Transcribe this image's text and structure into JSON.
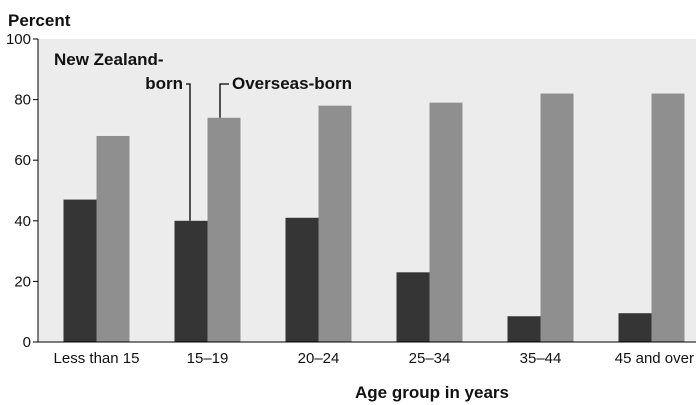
{
  "chart_data": {
    "type": "bar",
    "ylabel": "Percent",
    "xlabel": "Age group in years",
    "ylim": [
      0,
      100
    ],
    "yticks": [
      "0",
      "20",
      "40",
      "60",
      "80",
      "100"
    ],
    "grid": false,
    "legend": "top-left",
    "categories": [
      "Less than 15",
      "15–19",
      "20–24",
      "25–34",
      "35–44",
      "45 and over"
    ],
    "series": [
      {
        "name": "New Zealand-born",
        "label_lines": [
          "New Zealand-",
          "born"
        ],
        "color": "#353535",
        "values": [
          47,
          40,
          41,
          23,
          8.5,
          9.5
        ]
      },
      {
        "name": "Overseas-born",
        "label_lines": [
          "Overseas-born"
        ],
        "color": "#8f8f8f",
        "values": [
          68,
          74,
          78,
          79,
          82,
          82
        ]
      }
    ],
    "colors": {
      "plot_background": "#ececec",
      "axis": "#000000"
    }
  }
}
